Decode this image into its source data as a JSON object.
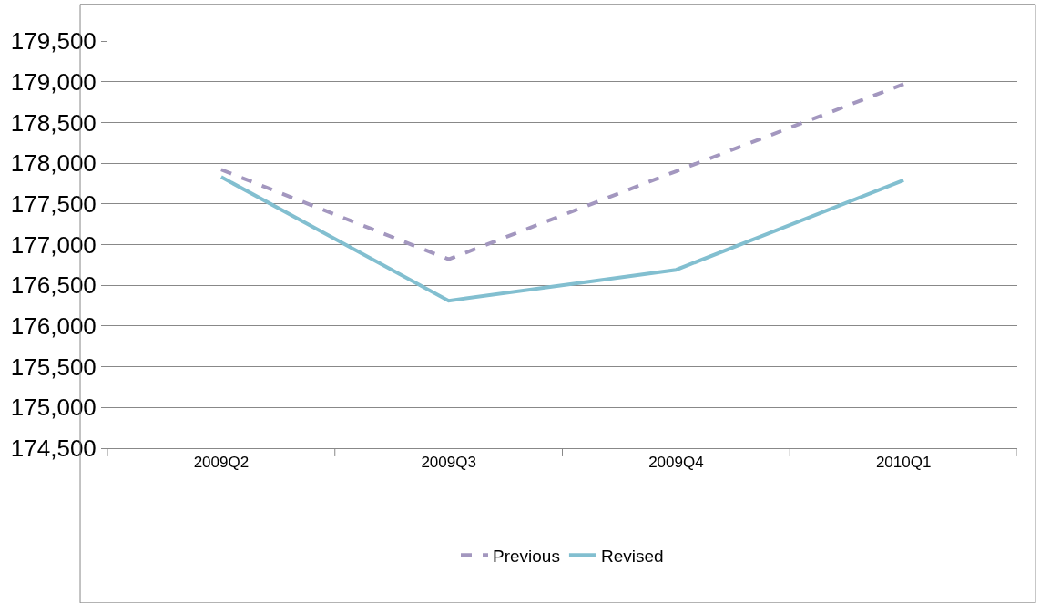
{
  "chart_data": {
    "type": "line",
    "categories": [
      "2009Q2",
      "2009Q3",
      "2009Q4",
      "2010Q1"
    ],
    "series": [
      {
        "name": "Previous",
        "color": "#a397bf",
        "values": [
          177920,
          176820,
          177900,
          178970
        ],
        "line_style": "dashed"
      },
      {
        "name": "Revised",
        "color": "#82bfd0",
        "values": [
          177830,
          176310,
          176690,
          177790
        ],
        "line_style": "solid"
      }
    ],
    "ylim": [
      174500,
      179500
    ],
    "yticks": [
      {
        "value": 174500,
        "label": "174,500"
      },
      {
        "value": 175000,
        "label": "175,000"
      },
      {
        "value": 175500,
        "label": "175,500"
      },
      {
        "value": 176000,
        "label": "176,000"
      },
      {
        "value": 176500,
        "label": "176,500"
      },
      {
        "value": 177000,
        "label": "177,000"
      },
      {
        "value": 177500,
        "label": "177,500"
      },
      {
        "value": 178000,
        "label": "178,000"
      },
      {
        "value": 178500,
        "label": "178,500"
      },
      {
        "value": 179000,
        "label": "179,000"
      },
      {
        "value": 179500,
        "label": "179,500"
      }
    ],
    "grid": "y",
    "legend": "bottom",
    "marker": "none"
  }
}
